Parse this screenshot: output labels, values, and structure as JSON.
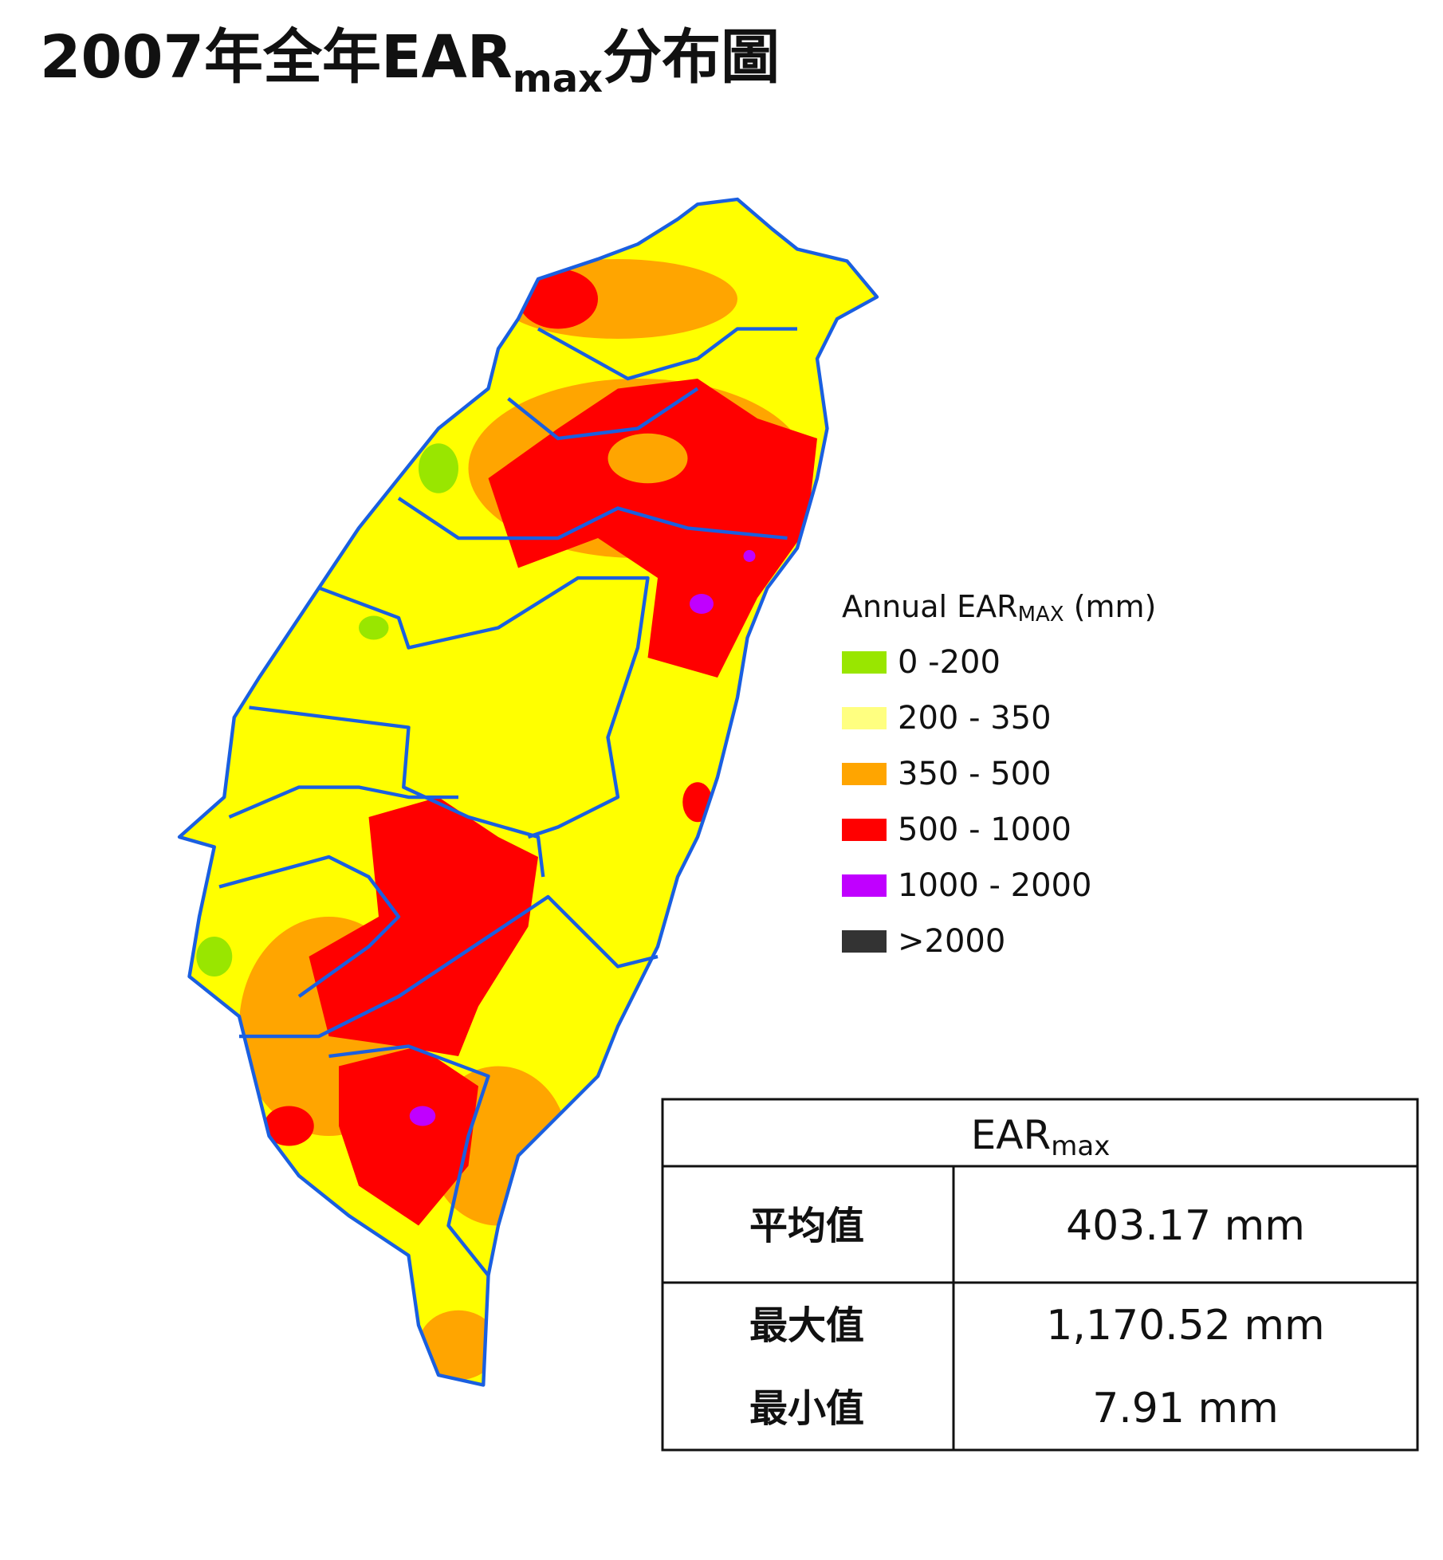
{
  "title": {
    "main": "2007年全年EAR",
    "sub": "max",
    "suffix": "分布圖"
  },
  "legend": {
    "title": "Annual EAR",
    "title_sub": "MAX",
    "title_unit": " (mm)",
    "items": [
      {
        "label": "0 -200",
        "color": "#99e600"
      },
      {
        "label": "200 - 350",
        "color": "#ffff80"
      },
      {
        "label": "350 - 500",
        "color": "#ffa500"
      },
      {
        "label": "500 - 1000",
        "color": "#ff0000"
      },
      {
        "label": "1000 - 2000",
        "color": "#c000ff"
      },
      {
        "label": ">2000",
        "color": "#333333"
      }
    ]
  },
  "table": {
    "header": "EAR",
    "header_sub": "max",
    "rows": [
      [
        "平均值",
        "403.17 mm"
      ],
      [
        "最大值",
        "1,170.52 mm"
      ],
      [
        "最小值",
        "7.91 mm"
      ]
    ]
  }
}
